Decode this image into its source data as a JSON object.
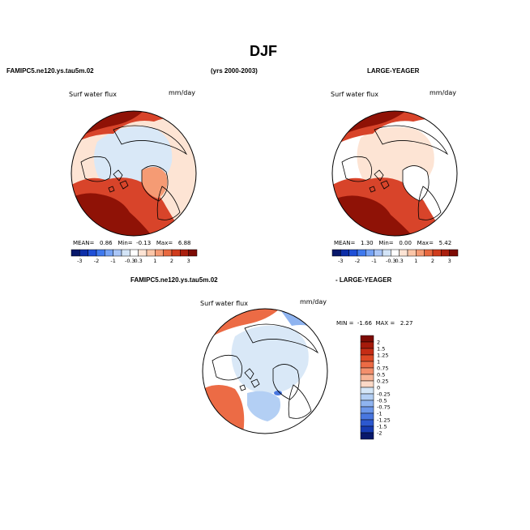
{
  "page": {
    "title": "DJF",
    "header_left": "FAMIPC5.ne120.ys.tau5m.02",
    "header_center": "(yrs 2000-2003)",
    "header_right": "LARGE-YEAGER",
    "diff_left": "FAMIPC5.ne120.ys.tau5m.02",
    "diff_right": "- LARGE-YEAGER"
  },
  "panels": [
    {
      "id": "model",
      "variable": "Surf water flux",
      "units": "mm/day",
      "stats": {
        "mean_label": "MEAN=",
        "mean": "0.86",
        "min_label": "Min=",
        "min": "-0.13",
        "max_label": "Max=",
        "max": "6.88"
      }
    },
    {
      "id": "obs",
      "variable": "Surf water flux",
      "units": "mm/day",
      "stats": {
        "mean_label": "MEAN=",
        "mean": "1.30",
        "min_label": "Min=",
        "min": "0.00",
        "max_label": "Max=",
        "max": "5.42"
      }
    },
    {
      "id": "diff",
      "variable": "Surf water flux",
      "units": "mm/day",
      "stats": {
        "min_label": "MIN =",
        "min": "-1.66",
        "max_label": "MAX =",
        "max": "2.27"
      }
    }
  ],
  "colorbar_h": {
    "labels": [
      "-3",
      "-2",
      "-1",
      "-0.3",
      "0.3",
      "1",
      "2",
      "3"
    ],
    "colors": [
      "#08186b",
      "#0d2ea8",
      "#1f4fd6",
      "#3f79ee",
      "#76a3f5",
      "#aac6f7",
      "#d3e4f7",
      "#ffffff",
      "#fde4d4",
      "#fbc6a8",
      "#f59b74",
      "#e8693f",
      "#cf3b1c",
      "#aa1f0e",
      "#7d0b04"
    ]
  },
  "colorbar_v": {
    "labels": [
      "2",
      "1.5",
      "1.25",
      "1",
      "0.75",
      "0.5",
      "0.25",
      "0",
      "-0.25",
      "-0.5",
      "-0.75",
      "-1",
      "-1.25",
      "-1.5",
      "-2"
    ],
    "colors": [
      "#7d0b04",
      "#a51a0b",
      "#c52d15",
      "#dd4a26",
      "#ec6b45",
      "#f38f6c",
      "#f7b597",
      "#fbd9c7",
      "#d4e6f7",
      "#b3cff4",
      "#8fb4f0",
      "#6c97ea",
      "#4977e0",
      "#2c58cf",
      "#163bb2",
      "#08186b"
    ]
  },
  "map_colors": {
    "land_outline": "#000000",
    "strong_precip": "#8f1206",
    "moderate_precip": "#d8442a",
    "light_precip": "#fde4d4",
    "drying": "#d9e8f7",
    "dry_blue": "#5a86e6"
  }
}
